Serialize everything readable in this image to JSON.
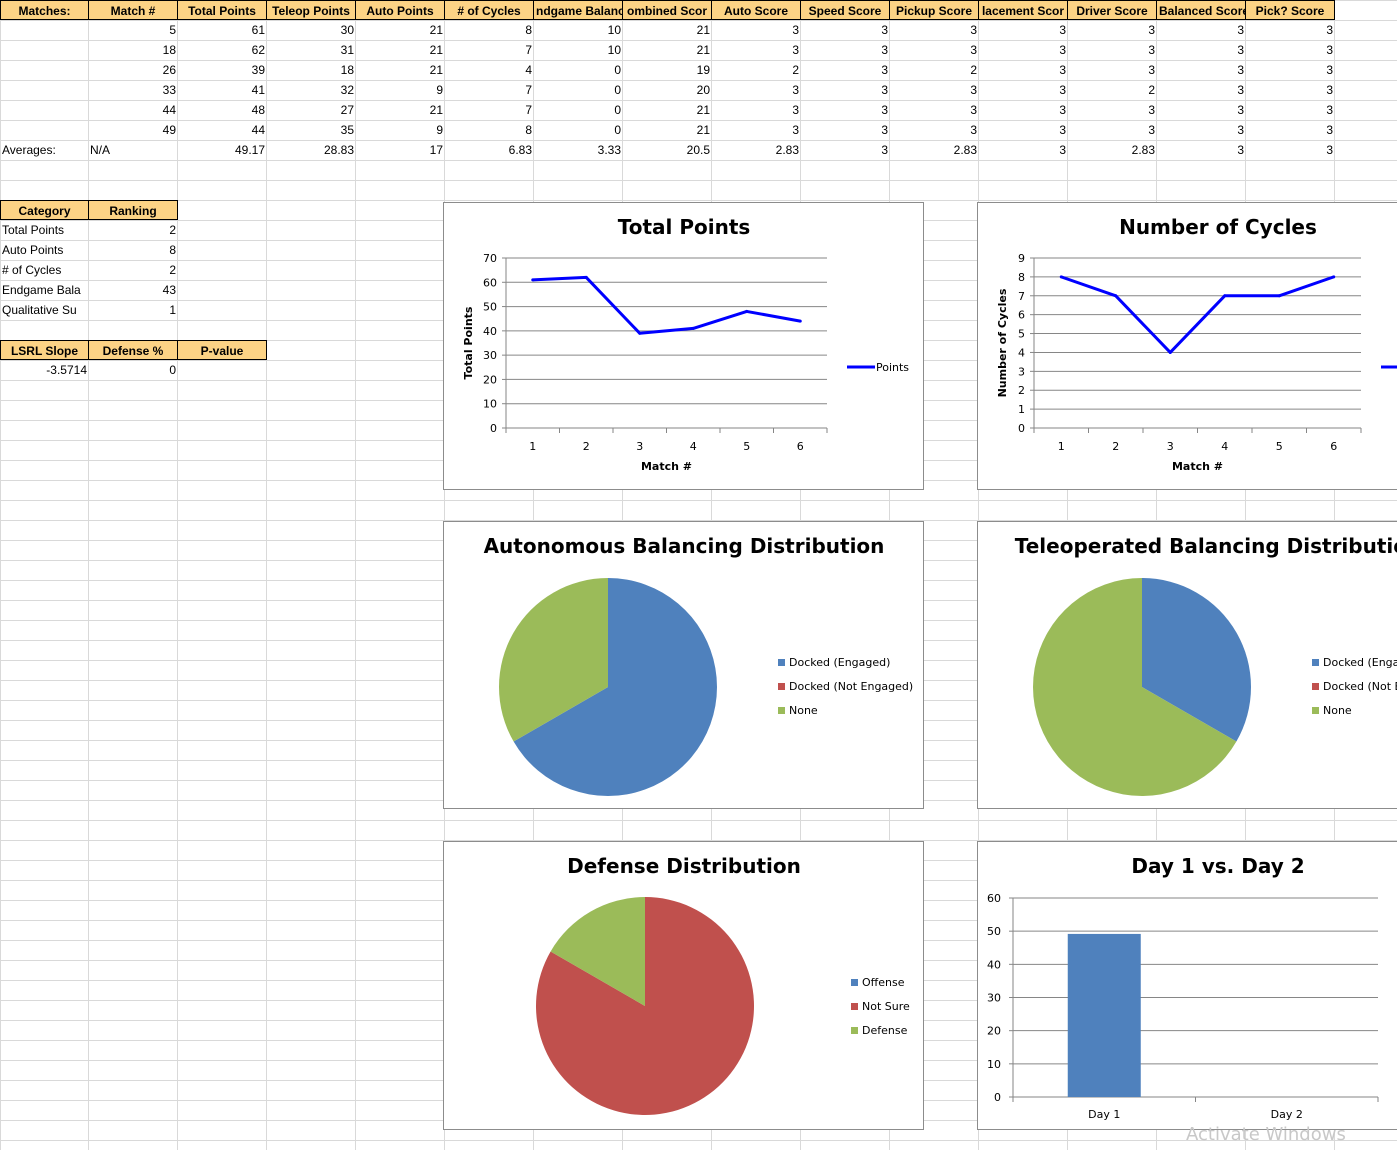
{
  "colors": {
    "header_fill": "#fcd385",
    "gridline": "#d9d9d9",
    "line_series": "#0000ff",
    "blue": "#4f81bd",
    "red": "#c0504d",
    "green": "#9bbb59"
  },
  "headers": [
    "Matches:",
    "Match #",
    "Total Points",
    "Teleop Points",
    "Auto Points",
    "# of Cycles",
    "ndgame Balanc",
    "ombined Scor",
    "Auto Score",
    "Speed Score",
    "Pickup Score",
    "lacement Scor",
    "Driver Score",
    "Balanced Score",
    "Pick? Score"
  ],
  "matches": [
    [
      "",
      "5",
      "61",
      "30",
      "21",
      "8",
      "10",
      "21",
      "3",
      "3",
      "3",
      "3",
      "3",
      "3",
      "3"
    ],
    [
      "",
      "18",
      "62",
      "31",
      "21",
      "7",
      "10",
      "21",
      "3",
      "3",
      "3",
      "3",
      "3",
      "3",
      "3"
    ],
    [
      "",
      "26",
      "39",
      "18",
      "21",
      "4",
      "0",
      "19",
      "2",
      "3",
      "2",
      "3",
      "3",
      "3",
      "3"
    ],
    [
      "",
      "33",
      "41",
      "32",
      "9",
      "7",
      "0",
      "20",
      "3",
      "3",
      "3",
      "3",
      "2",
      "3",
      "3"
    ],
    [
      "",
      "44",
      "48",
      "27",
      "21",
      "7",
      "0",
      "21",
      "3",
      "3",
      "3",
      "3",
      "3",
      "3",
      "3"
    ],
    [
      "",
      "49",
      "44",
      "35",
      "9",
      "8",
      "0",
      "21",
      "3",
      "3",
      "3",
      "3",
      "3",
      "3",
      "3"
    ]
  ],
  "averages": [
    "Averages:",
    "N/A",
    "49.17",
    "28.83",
    "17",
    "6.83",
    "3.33",
    "20.5",
    "2.83",
    "3",
    "2.83",
    "3",
    "2.83",
    "3",
    "3"
  ],
  "ranking": {
    "headers": [
      "Category",
      "Ranking"
    ],
    "rows": [
      [
        "Total Points",
        "2"
      ],
      [
        "Auto Points",
        "8"
      ],
      [
        "# of Cycles",
        "2"
      ],
      [
        "Endgame Bala",
        "43"
      ],
      [
        "Qualitative Su",
        "1"
      ]
    ]
  },
  "stats": {
    "headers": [
      "LSRL Slope",
      "Defense %",
      "P-value"
    ],
    "values": [
      "-3.5714",
      "0",
      ""
    ]
  },
  "watermark": "Activate Windows",
  "chart_data": [
    {
      "type": "line",
      "title": "Total Points",
      "xlabel": "Match #",
      "ylabel": "Total Points",
      "x": [
        "1",
        "2",
        "3",
        "4",
        "5",
        "6"
      ],
      "series": [
        {
          "name": "Points",
          "values": [
            61,
            62,
            39,
            41,
            48,
            44
          ]
        }
      ],
      "ylim": [
        0,
        70
      ],
      "yticks": [
        "0",
        "10",
        "20",
        "30",
        "40",
        "50",
        "60",
        "70"
      ],
      "legend": "right",
      "grid": true
    },
    {
      "type": "line",
      "title": "Number of Cycles",
      "xlabel": "Match #",
      "ylabel": "Number of Cycles",
      "x": [
        "1",
        "2",
        "3",
        "4",
        "5",
        "6"
      ],
      "series": [
        {
          "values": [
            8,
            7,
            4,
            7,
            7,
            8
          ]
        }
      ],
      "ylim": [
        0,
        9
      ],
      "yticks": [
        "0",
        "1",
        "2",
        "3",
        "4",
        "5",
        "6",
        "7",
        "8",
        "9"
      ],
      "legend": "right",
      "grid": true
    },
    {
      "type": "pie",
      "title": "Autonomous Balancing Distribution",
      "labels": [
        "Docked (Engaged)",
        "Docked (Not Engaged)",
        "None"
      ],
      "values": [
        4,
        0,
        2
      ],
      "legend": "right"
    },
    {
      "type": "pie",
      "title": "Teleoperated Balancing Distribution",
      "labels": [
        "Docked (Enga",
        "Docked (Not E",
        "None"
      ],
      "values": [
        2,
        0,
        4
      ],
      "legend": "right"
    },
    {
      "type": "pie",
      "title": "Defense Distribution",
      "labels": [
        "Offense",
        "Not Sure",
        "Defense"
      ],
      "values": [
        0,
        5,
        1
      ],
      "legend": "right"
    },
    {
      "type": "bar",
      "title": "Day 1 vs. Day 2",
      "categories": [
        "Day 1",
        "Day 2"
      ],
      "values": [
        49.17,
        0
      ],
      "ylim": [
        0,
        60
      ],
      "yticks": [
        "0",
        "10",
        "20",
        "30",
        "40",
        "50",
        "60"
      ],
      "grid": true
    }
  ]
}
